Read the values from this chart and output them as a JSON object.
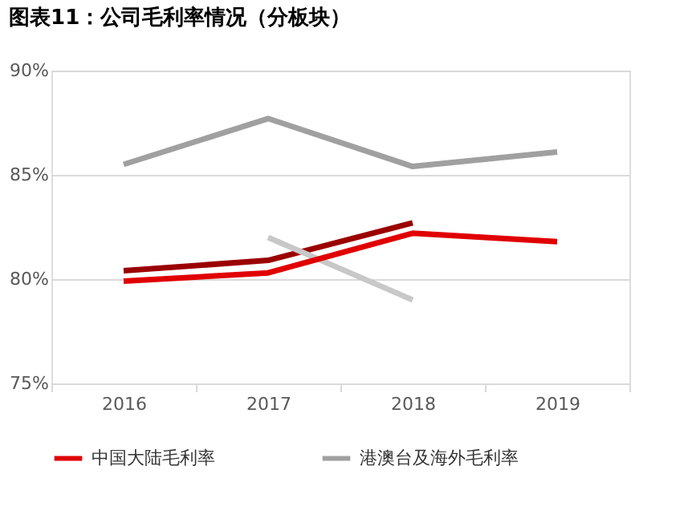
{
  "chart_data": {
    "type": "line",
    "title": "图表11：公司毛利率情况（分板块）",
    "categories": [
      "2016",
      "2017",
      "2018",
      "2019"
    ],
    "series": [
      {
        "color": "#9b0000",
        "values": [
          80.4,
          80.9,
          82.7,
          null
        ]
      },
      {
        "color": "#c8c8c8",
        "values": [
          null,
          82.0,
          79.0,
          null
        ]
      },
      {
        "name": "中国大陆毛利率",
        "color": "#e00000",
        "values": [
          79.9,
          80.3,
          82.2,
          81.8
        ]
      },
      {
        "name": "港澳台及海外毛利率",
        "color": "#a0a0a0",
        "values": [
          85.5,
          87.7,
          85.4,
          86.1
        ]
      }
    ],
    "ylim": [
      75,
      90
    ],
    "yticks": [
      {
        "value": 75,
        "label": "75%"
      },
      {
        "value": 80,
        "label": "80%"
      },
      {
        "value": 85,
        "label": "85%"
      },
      {
        "value": 90,
        "label": "90%"
      }
    ],
    "grid": "y",
    "legend": "bottom",
    "marker": "none",
    "line_style": "solid"
  }
}
